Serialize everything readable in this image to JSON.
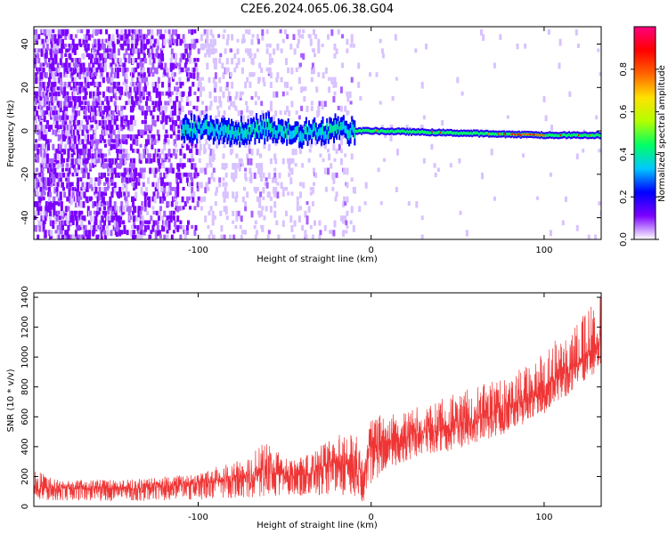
{
  "figure_title": "C2E6.2024.065.06.38.G04",
  "chart_data": [
    {
      "type": "heatmap",
      "xlabel": "Height of straight line (km)",
      "ylabel": "Frequency (Hz)",
      "xlim": [
        -195,
        133
      ],
      "ylim": [
        -50,
        48
      ],
      "x_ticks": [
        "-100",
        "0",
        "100"
      ],
      "x_tick_values": [
        -100,
        0,
        100
      ],
      "y_ticks": [
        "-40",
        "-20",
        "0",
        "20",
        "40"
      ],
      "y_tick_values": [
        -40,
        -20,
        0,
        20,
        40
      ],
      "colorbar": {
        "label": "Normalized spectral amplitude",
        "range": [
          0,
          1
        ],
        "ticks": [
          "0.0",
          "0.2",
          "0.4",
          "0.6",
          "0.8"
        ],
        "tick_values": [
          0.0,
          0.2,
          0.4,
          0.6,
          0.8
        ],
        "colors": [
          "#ffffff",
          "#7b00ff",
          "#0000ff",
          "#00c8ff",
          "#00ff64",
          "#b4ff00",
          "#ffe100",
          "#ff6400",
          "#ff0000",
          "#ff0080"
        ]
      },
      "features": {
        "carrier_line": {
          "points": [
            [
              -110,
              0
            ],
            [
              -100,
              1
            ],
            [
              -80,
              -1
            ],
            [
              -60,
              1
            ],
            [
              -40,
              -1
            ],
            [
              -20,
              1
            ],
            [
              -10,
              0
            ],
            [
              0,
              0
            ],
            [
              50,
              -1
            ],
            [
              100,
              -2
            ],
            [
              133,
              -2
            ]
          ],
          "peak_amplitude": 0.9
        },
        "noise_band": {
          "x_range": [
            -195,
            -100
          ],
          "y_range": [
            -50,
            48
          ],
          "mean_amplitude": 0.25
        },
        "sparse_noise": {
          "x_range": [
            -100,
            -10
          ],
          "y_range": [
            -50,
            48
          ],
          "mean_amplitude": 0.1
        }
      },
      "grid": false
    },
    {
      "type": "line",
      "xlabel": "Height of straight line (km)",
      "ylabel": "SNR (10 * v/v)",
      "xlim": [
        -195,
        133
      ],
      "ylim": [
        0,
        1430
      ],
      "x_ticks": [
        "-100",
        "0",
        "100"
      ],
      "x_tick_values": [
        -100,
        0,
        100
      ],
      "y_ticks": [
        "0",
        "200",
        "400",
        "600",
        "800",
        "1000",
        "1200",
        "1400"
      ],
      "y_tick_values": [
        0,
        200,
        400,
        600,
        800,
        1000,
        1200,
        1400
      ],
      "line_color": "#ef3535",
      "grid": false,
      "series": [
        {
          "x": [
            -195,
            -180,
            -160,
            -140,
            -120,
            -100,
            -90,
            -80,
            -70,
            -60,
            -50,
            -40,
            -30,
            -20,
            -10,
            -5,
            0,
            10,
            20,
            30,
            40,
            50,
            60,
            70,
            80,
            90,
            100,
            110,
            120,
            130,
            133
          ],
          "low": [
            40,
            40,
            35,
            35,
            40,
            45,
            50,
            55,
            60,
            65,
            65,
            70,
            75,
            80,
            70,
            20,
            150,
            250,
            300,
            330,
            360,
            380,
            420,
            460,
            500,
            560,
            620,
            700,
            800,
            900,
            950
          ],
          "high": [
            250,
            180,
            180,
            180,
            200,
            220,
            280,
            280,
            360,
            440,
            320,
            330,
            400,
            480,
            500,
            420,
            600,
            640,
            640,
            680,
            720,
            760,
            800,
            850,
            900,
            950,
            1050,
            1150,
            1250,
            1400,
            1430
          ],
          "mean": [
            120,
            115,
            115,
            115,
            130,
            140,
            160,
            170,
            190,
            210,
            200,
            210,
            230,
            260,
            280,
            180,
            380,
            420,
            450,
            480,
            500,
            530,
            560,
            600,
            650,
            700,
            780,
            860,
            940,
            1050,
            1100
          ]
        }
      ]
    }
  ]
}
